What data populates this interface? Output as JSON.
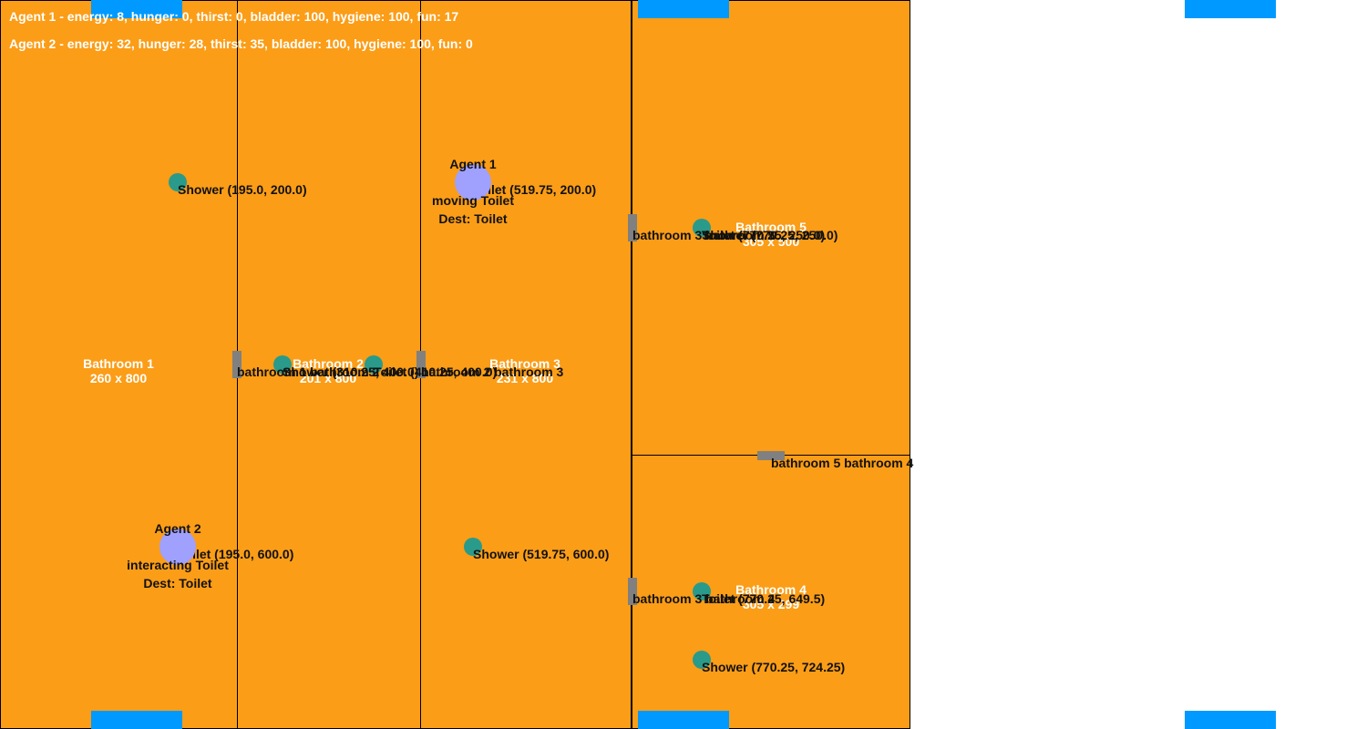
{
  "stats": {
    "agent1": "Agent 1 - energy: 8, hunger: 0, thirst: 0, bladder: 100, hygiene: 100, fun: 17",
    "agent2": "Agent 2 - energy: 32, hunger: 28, thirst: 35, bladder: 100, hygiene: 100, fun: 0"
  },
  "rooms": {
    "bathroom1": {
      "name": "Bathroom 1",
      "size": "260 x 800"
    },
    "bathroom2": {
      "name": "Bathroom 2",
      "size": "201 x 800"
    },
    "bathroom3": {
      "name": "Bathroom 3",
      "size": "231 x 800"
    },
    "bathroom4": {
      "name": "Bathroom 4",
      "size": "305 x 299"
    },
    "bathroom5": {
      "name": "Bathroom 5",
      "size": "305 x 500"
    }
  },
  "doors": {
    "d12": "bathroom 1 bathroom 2",
    "d23": "bathroom 2 bathroom 3",
    "d35": "bathroom 3 bathroom 5",
    "d34": "bathroom 3 bathroom 4",
    "d54": "bathroom 5 bathroom 4"
  },
  "objects": {
    "b1_shower": "Shower (195.0, 200.0)",
    "b1_toilet": "Toilet (195.0, 600.0)",
    "b2_shower": "Shower (310.25, 400.0)",
    "b2_toilet": "Toilet (410.25, 400.0)",
    "b3_toilet": "Toilet (519.75, 200.0)",
    "b3_shower": "Shower (519.75, 600.0)",
    "b5_shower": "Shower (770.25, 250.0)",
    "b5_toilet": "Toilet (770.25, 250.0)",
    "b4_toilet": "Toilet (770.25, 649.5)",
    "b4_shower": "Shower (770.25, 724.25)"
  },
  "agents": {
    "agent1": {
      "name": "Agent 1",
      "state": "moving Toilet",
      "dest": "Dest: Toilet"
    },
    "agent2": {
      "name": "Agent 2",
      "state": "interacting Toilet",
      "dest": "Dest: Toilet"
    }
  },
  "colors": {
    "floor": "#fb9d17",
    "wall": "#000000",
    "door": "#808080",
    "window": "#0099ff",
    "object": "#2a9a8a",
    "agent": "#a0a0ff"
  }
}
